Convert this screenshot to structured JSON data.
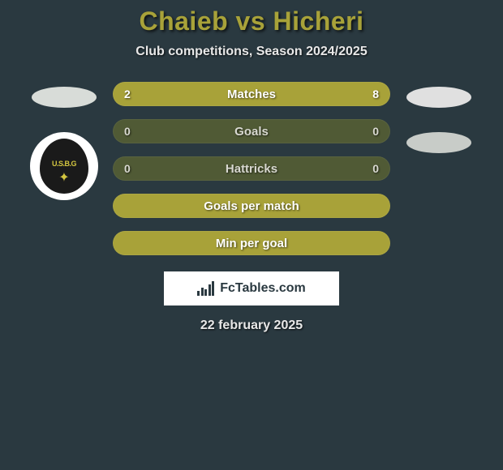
{
  "title": "Chaieb vs Hicheri",
  "subtitle": "Club competitions, Season 2024/2025",
  "date": "22 february 2025",
  "watermark": "FcTables.com",
  "colors": {
    "background": "#2a3940",
    "accent": "#a8a239",
    "bar_track": "#505a35",
    "bar_fill": "#a8a239",
    "text_light": "#e8e8e8",
    "text_on_fill": "#ffffff",
    "text_on_track": "#d8d8d0",
    "oval_fill": "#d8dcd8"
  },
  "left_side": {
    "oval_color": "#d8dcd8",
    "has_badge": true,
    "badge_label": "U.S.B.G"
  },
  "right_side": {
    "oval1_color": "#e0e0e0",
    "oval2_color": "#c8ccc8"
  },
  "bars": [
    {
      "label": "Matches",
      "left": "2",
      "right": "8",
      "left_pct": 20,
      "right_pct": 80,
      "track_visible": false
    },
    {
      "label": "Goals",
      "left": "0",
      "right": "0",
      "left_pct": 0,
      "right_pct": 0,
      "track_visible": true
    },
    {
      "label": "Hattricks",
      "left": "0",
      "right": "0",
      "left_pct": 0,
      "right_pct": 0,
      "track_visible": true
    },
    {
      "label": "Goals per match",
      "left": "",
      "right": "",
      "left_pct": 0,
      "right_pct": 0,
      "empty": true
    },
    {
      "label": "Min per goal",
      "left": "",
      "right": "",
      "left_pct": 0,
      "right_pct": 0,
      "empty": true
    }
  ]
}
